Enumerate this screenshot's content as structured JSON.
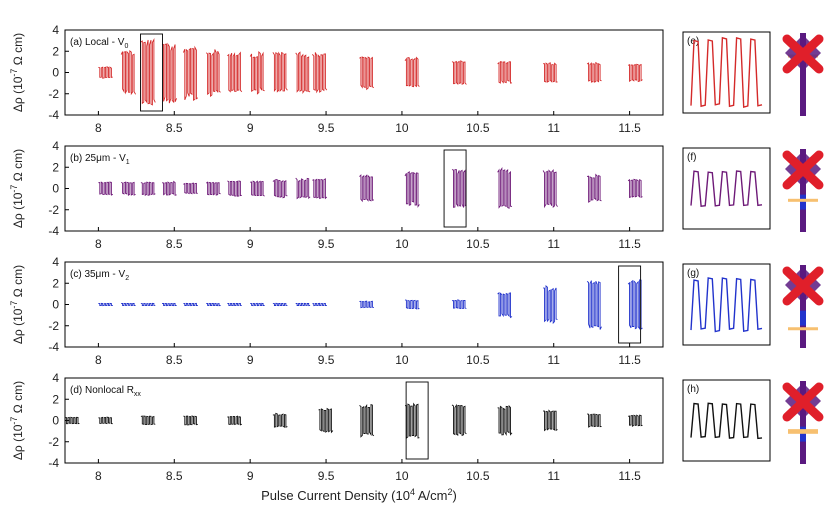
{
  "figure": {
    "xlabel_main": "Pulse Current Density (10",
    "xlabel_sup": "4",
    "xlabel_tail": " A/cm",
    "xlabel_sup2": "2",
    "xlabel_end": ")"
  },
  "colors": {
    "red": "#d42a2a",
    "purple": "#6e1a78",
    "blue": "#2233cc",
    "black": "#111111",
    "cross": "#e01f2a",
    "bar_top": "#5a1a80",
    "bar_blue": "#2233cc",
    "bar_orange": "#f7c070"
  },
  "chart_data": [
    {
      "type": "line",
      "panel": "(a)",
      "label_text": "(a) Local - V",
      "label_sub": "0",
      "ylabel": "Δρ (10",
      "ylabel_sup": "-7",
      "ylabel_tail": " Ω cm)",
      "xlim": [
        7.78,
        11.72
      ],
      "ylim": [
        -4,
        4
      ],
      "xticks": [
        "8",
        "8.5",
        "9",
        "9.5",
        "10",
        "10.5",
        "11",
        "11.5"
      ],
      "yticks": [
        "4",
        "2",
        "0",
        "-2",
        "-4"
      ],
      "color": "red",
      "segment_start": [
        8.0,
        8.15,
        8.28,
        8.42,
        8.56,
        8.71,
        8.85,
        9.0,
        9.15,
        9.3,
        9.41,
        9.72,
        10.02,
        10.33,
        10.63,
        10.93,
        11.22,
        11.49
      ],
      "amplitude": [
        0.5,
        2.0,
        3.1,
        2.7,
        2.4,
        2.0,
        1.9,
        1.8,
        1.8,
        1.8,
        1.8,
        1.5,
        1.4,
        1.1,
        1.0,
        0.9,
        0.9,
        0.8
      ],
      "highlight": [
        8.35
      ],
      "inset": {
        "label": "(e)",
        "amplitude": 3.1
      }
    },
    {
      "type": "line",
      "panel": "(b)",
      "label_text": "(b) 25μm - V",
      "label_sub": "1",
      "ylabel": "Δρ (10",
      "ylabel_sup": "-7",
      "ylabel_tail": " Ω cm)",
      "xlim": [
        7.78,
        11.72
      ],
      "ylim": [
        -4,
        4
      ],
      "xticks": [
        "8",
        "8.5",
        "9",
        "9.5",
        "10",
        "10.5",
        "11",
        "11.5"
      ],
      "yticks": [
        "4",
        "2",
        "0",
        "-2",
        "-4"
      ],
      "color": "purple",
      "segment_start": [
        8.0,
        8.15,
        8.28,
        8.42,
        8.56,
        8.71,
        8.85,
        9.0,
        9.15,
        9.3,
        9.41,
        9.72,
        10.02,
        10.33,
        10.63,
        10.93,
        11.22,
        11.49
      ],
      "amplitude": [
        0.6,
        0.6,
        0.6,
        0.6,
        0.5,
        0.6,
        0.7,
        0.7,
        0.8,
        0.9,
        0.9,
        1.2,
        1.6,
        1.8,
        1.8,
        1.7,
        1.2,
        0.8
      ],
      "highlight": [
        10.35
      ],
      "inset": {
        "label": "(f)",
        "amplitude": 1.6
      }
    },
    {
      "type": "line",
      "panel": "(c)",
      "label_text": "(c) 35μm - V",
      "label_sub": "2",
      "ylabel": "Δρ (10",
      "ylabel_sup": "-7",
      "ylabel_tail": " Ω cm)",
      "xlim": [
        7.78,
        11.72
      ],
      "ylim": [
        -4,
        4
      ],
      "xticks": [
        "8",
        "8.5",
        "9",
        "9.5",
        "10",
        "10.5",
        "11",
        "11.5"
      ],
      "yticks": [
        "4",
        "2",
        "0",
        "-2",
        "-4"
      ],
      "color": "blue",
      "segment_start": [
        8.0,
        8.15,
        8.28,
        8.42,
        8.56,
        8.71,
        8.85,
        9.0,
        9.15,
        9.3,
        9.41,
        9.72,
        10.02,
        10.33,
        10.63,
        10.93,
        11.22,
        11.49
      ],
      "amplitude": [
        0.1,
        0.1,
        0.1,
        0.1,
        0.1,
        0.1,
        0.1,
        0.1,
        0.1,
        0.1,
        0.1,
        0.3,
        0.4,
        0.4,
        1.1,
        1.6,
        2.2,
        2.4
      ],
      "highlight": [
        11.5
      ],
      "inset": {
        "label": "(g)",
        "amplitude": 2.4
      }
    },
    {
      "type": "line",
      "panel": "(d)",
      "label_text": "(d) Nonlocal R",
      "label_sub": "xx",
      "ylabel": "Δρ (10",
      "ylabel_sup": "-7",
      "ylabel_tail": " Ω cm)",
      "xlim": [
        7.78,
        11.72
      ],
      "ylim": [
        -4,
        4
      ],
      "xticks": [
        "8",
        "8.5",
        "9",
        "9.5",
        "10",
        "10.5",
        "11",
        "11.5"
      ],
      "yticks": [
        "4",
        "2",
        "0",
        "-2",
        "-4"
      ],
      "color": "black",
      "segment_start": [
        7.78,
        8.0,
        8.28,
        8.56,
        8.85,
        9.15,
        9.45,
        9.72,
        10.02,
        10.33,
        10.63,
        10.93,
        11.22,
        11.49
      ],
      "amplitude": [
        0.3,
        0.3,
        0.4,
        0.4,
        0.4,
        0.6,
        1.1,
        1.4,
        1.6,
        1.5,
        1.3,
        0.9,
        0.6,
        0.5
      ],
      "highlight": [
        10.1
      ],
      "inset": {
        "label": "(h)",
        "amplitude": 1.6
      }
    }
  ]
}
